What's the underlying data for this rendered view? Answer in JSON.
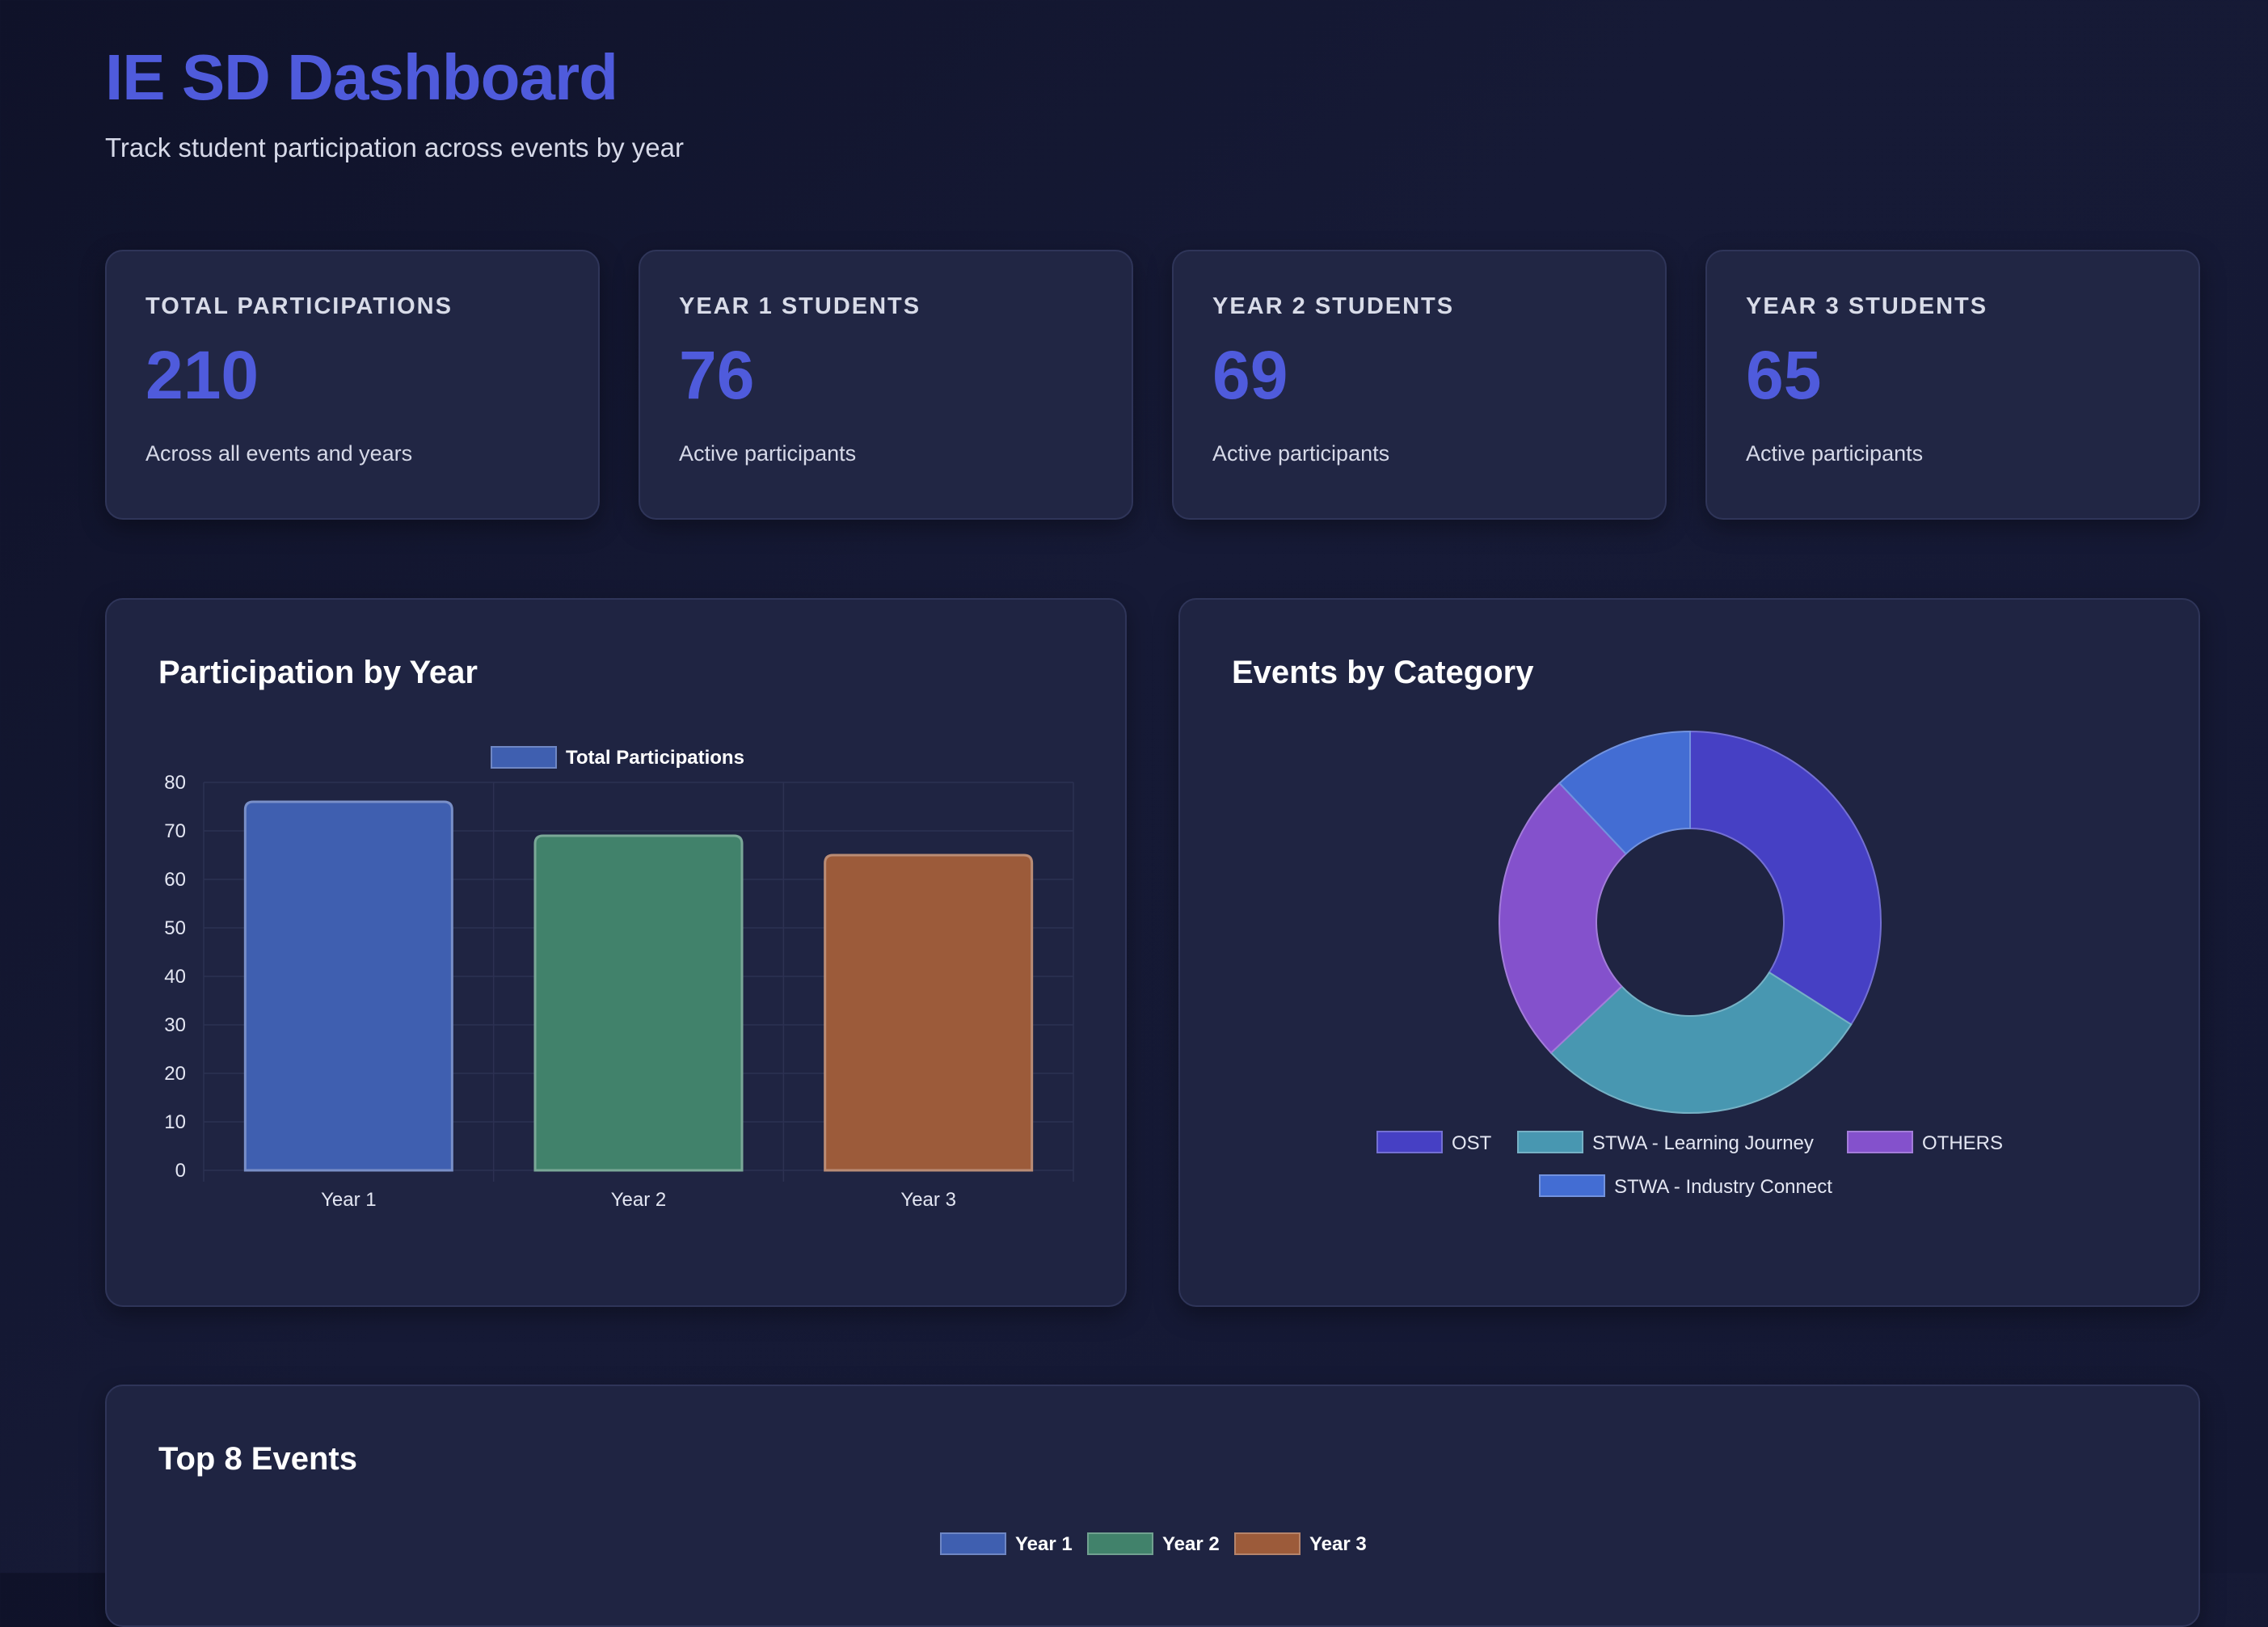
{
  "header": {
    "title": "IE SD Dashboard",
    "subtitle": "Track student participation across events by year"
  },
  "stats": [
    {
      "label": "TOTAL PARTICIPATIONS",
      "value": "210",
      "desc": "Across all events and years"
    },
    {
      "label": "YEAR 1 STUDENTS",
      "value": "76",
      "desc": "Active participants"
    },
    {
      "label": "YEAR 2 STUDENTS",
      "value": "69",
      "desc": "Active participants"
    },
    {
      "label": "YEAR 3 STUDENTS",
      "value": "65",
      "desc": "Active participants"
    }
  ],
  "panels": {
    "year_title": "Participation by Year",
    "category_title": "Events by Category",
    "top_title": "Top 8 Events"
  },
  "colors": {
    "accent": "#4f5bdc",
    "year1": "#3f5fb0",
    "year2": "#41826b",
    "year3": "#9c5b3a",
    "ost": "#4640c4",
    "stwa_lj": "#4897b1",
    "others": "#8451cc",
    "stwa_ic": "#436dd3"
  },
  "chart_data": [
    {
      "type": "bar",
      "title": "Participation by Year",
      "categories": [
        "Year 1",
        "Year 2",
        "Year 3"
      ],
      "series": [
        {
          "name": "Total Participations",
          "values": [
            76,
            69,
            65
          ]
        }
      ],
      "ylim": [
        0,
        80
      ],
      "yticks": [
        "0",
        "10",
        "20",
        "30",
        "40",
        "50",
        "60",
        "70",
        "80"
      ],
      "grid": true,
      "legend": "top"
    },
    {
      "type": "pie",
      "title": "Events by Category",
      "labels": [
        "OST",
        "STWA - Learning Journey",
        "OTHERS",
        "STWA - Industry Connect"
      ],
      "values": [
        34,
        29,
        25,
        12
      ],
      "legend": "bottom"
    },
    {
      "type": "bar",
      "title": "Top 8 Events",
      "series": [
        {
          "name": "Year 1"
        },
        {
          "name": "Year 2"
        },
        {
          "name": "Year 3"
        }
      ],
      "legend": "top"
    }
  ]
}
